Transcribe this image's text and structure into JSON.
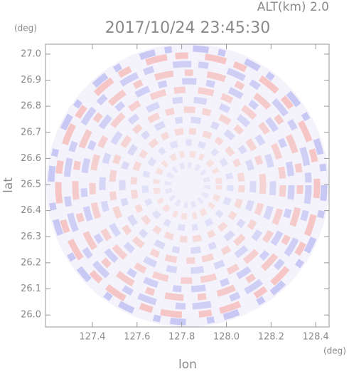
{
  "chart_data": {
    "type": "ppi",
    "title": "2017/10/24 23:45:30",
    "annotation": "ALT(km) 2.0",
    "x_label": "lon",
    "y_label": "lat",
    "x_unit": "(deg)",
    "y_unit": "(deg)",
    "xlim": [
      127.19,
      128.46
    ],
    "ylim": [
      25.954,
      27.038
    ],
    "xticks": [
      127.4,
      127.6,
      127.8,
      {
        "value": 128,
        "label": "128.0"
      },
      128.2,
      128.4
    ],
    "yticks": [
      {
        "value": 26,
        "label": "26.0"
      },
      26.1,
      26.2,
      26.3,
      26.4,
      26.5,
      26.6,
      26.7,
      26.8,
      26.9,
      {
        "value": 27,
        "label": "27.0"
      }
    ]
  }
}
